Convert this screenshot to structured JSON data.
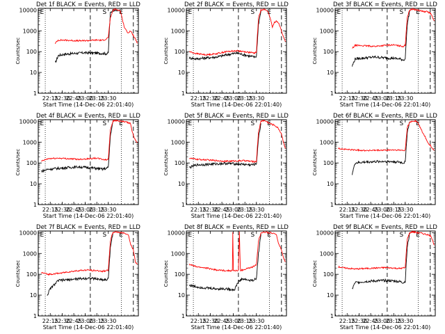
{
  "chart_data": [
    {
      "type": "line",
      "title": "Det 1f BLACK = Events, RED = LLD",
      "xlabel": "Start Time (14-Dec-06 22:01:40)",
      "ylabel": "Counts/sec",
      "x_tick_labels": [
        "22:15",
        "22:30",
        "22:45",
        "23:00",
        "23:15",
        "23:30"
      ],
      "y_tick_labels": [
        "1",
        "10",
        "100",
        "1000",
        "10000"
      ],
      "ylim": [
        1,
        12000
      ],
      "y_scale": "log",
      "markers": [
        "E",
        "S",
        "E"
      ],
      "series": [
        {
          "name": "Events",
          "color": "#000000",
          "x": [
            0.17,
            0.2,
            0.26,
            0.36,
            0.46,
            0.56,
            0.64,
            0.68,
            0.7,
            0.71,
            0.72,
            0.745,
            0.77,
            0.8
          ],
          "y": [
            28,
            65,
            75,
            82,
            88,
            86,
            82,
            80,
            85,
            1000,
            7000,
            10000,
            9500,
            9200
          ]
        },
        {
          "name": "LLD",
          "color": "#ff0000",
          "x": [
            0.17,
            0.2,
            0.3,
            0.4,
            0.5,
            0.58,
            0.64,
            0.68,
            0.7,
            0.72,
            0.745,
            0.77,
            0.8,
            0.82,
            0.86,
            0.88,
            0.9,
            0.92,
            0.95,
            0.97,
            0.99
          ],
          "y": [
            250,
            360,
            350,
            330,
            340,
            360,
            350,
            400,
            500,
            4000,
            9500,
            11000,
            10000,
            9000,
            1500,
            1000,
            800,
            1000,
            600,
            400,
            250
          ]
        }
      ]
    },
    {
      "type": "line",
      "title": "Det 2f BLACK = Events, RED = LLD",
      "xlabel": "Start Time (14-Dec-06 22:01:40)",
      "ylabel": "Counts/sec",
      "x_tick_labels": [
        "22:15",
        "22:30",
        "22:45",
        "23:00",
        "23:15",
        "23:30"
      ],
      "y_tick_labels": [
        "1",
        "10",
        "100",
        "1000",
        "10000"
      ],
      "ylim": [
        1,
        12000
      ],
      "y_scale": "log",
      "markers": [
        "E",
        "S",
        "E"
      ],
      "series": [
        {
          "name": "Events",
          "color": "#000000",
          "x": [
            0.03,
            0.1,
            0.2,
            0.3,
            0.4,
            0.5,
            0.58,
            0.64,
            0.68,
            0.7,
            0.72,
            0.745
          ],
          "y": [
            50,
            45,
            50,
            55,
            70,
            85,
            70,
            60,
            55,
            60,
            2000,
            9000
          ]
        },
        {
          "name": "LLD",
          "color": "#ff0000",
          "x": [
            0.03,
            0.1,
            0.2,
            0.3,
            0.4,
            0.5,
            0.58,
            0.64,
            0.68,
            0.7,
            0.72,
            0.745,
            0.77,
            0.8,
            0.82,
            0.86,
            0.88,
            0.9,
            0.92,
            0.95,
            0.97,
            0.99
          ],
          "y": [
            100,
            80,
            70,
            80,
            100,
            110,
            100,
            90,
            85,
            95,
            4000,
            10000,
            11000,
            9500,
            8000,
            1500,
            2500,
            3000,
            2500,
            1000,
            500,
            300
          ]
        }
      ]
    },
    {
      "type": "line",
      "title": "Det 3f BLACK = Events, RED = LLD",
      "xlabel": "Start Time (14-Dec-06 22:01:40)",
      "ylabel": "Counts/sec",
      "x_tick_labels": [
        "22:15",
        "22:30",
        "22:45",
        "23:00",
        "23:15",
        "23:30"
      ],
      "y_tick_labels": [
        "1",
        "10",
        "100",
        "1000",
        "10000"
      ],
      "ylim": [
        1,
        12000
      ],
      "y_scale": "log",
      "markers": [
        "E",
        "S",
        "E"
      ],
      "series": [
        {
          "name": "Events",
          "color": "#000000",
          "x": [
            0.17,
            0.2,
            0.3,
            0.4,
            0.5,
            0.58,
            0.64,
            0.68,
            0.7,
            0.72,
            0.745
          ],
          "y": [
            20,
            45,
            50,
            55,
            50,
            48,
            45,
            40,
            45,
            2000,
            9500
          ]
        },
        {
          "name": "LLD",
          "color": "#ff0000",
          "x": [
            0.17,
            0.2,
            0.3,
            0.4,
            0.5,
            0.58,
            0.64,
            0.68,
            0.7,
            0.72,
            0.745,
            0.77,
            0.8,
            0.82,
            0.86,
            0.88,
            0.9,
            0.92,
            0.95,
            0.97,
            0.99
          ],
          "y": [
            140,
            200,
            190,
            180,
            200,
            210,
            190,
            180,
            200,
            4500,
            10000,
            11000,
            10500,
            10000,
            9000,
            8500,
            8000,
            8500,
            7000,
            5000,
            3000
          ]
        }
      ]
    },
    {
      "type": "line",
      "title": "Det 4f BLACK = Events, RED = LLD",
      "xlabel": "Start Time (14-Dec-06 22:01:40)",
      "ylabel": "Counts/sec",
      "x_tick_labels": [
        "22:15",
        "22:30",
        "22:45",
        "23:00",
        "23:15",
        "23:30"
      ],
      "y_tick_labels": [
        "1",
        "10",
        "100",
        "1000",
        "10000"
      ],
      "ylim": [
        1,
        12000
      ],
      "y_scale": "log",
      "markers": [
        "E",
        "S",
        "E"
      ],
      "series": [
        {
          "name": "Events",
          "color": "#000000",
          "x": [
            0.03,
            0.1,
            0.2,
            0.3,
            0.4,
            0.5,
            0.58,
            0.64,
            0.68,
            0.7,
            0.72,
            0.745
          ],
          "y": [
            40,
            50,
            55,
            60,
            65,
            60,
            55,
            50,
            55,
            60,
            2000,
            9000
          ]
        },
        {
          "name": "LLD",
          "color": "#ff0000",
          "x": [
            0.03,
            0.1,
            0.2,
            0.3,
            0.4,
            0.5,
            0.58,
            0.64,
            0.68,
            0.7,
            0.72,
            0.745,
            0.77,
            0.8,
            0.82,
            0.86,
            0.88,
            0.9,
            0.92,
            0.95,
            0.97,
            0.99
          ],
          "y": [
            120,
            160,
            170,
            160,
            150,
            160,
            170,
            150,
            140,
            150,
            4000,
            10000,
            11000,
            10500,
            10000,
            9500,
            9000,
            8500,
            8000,
            2000,
            1200,
            1000
          ]
        }
      ]
    },
    {
      "type": "line",
      "title": "Det 5f BLACK = Events, RED = LLD",
      "xlabel": "Start Time (14-Dec-06 22:01:40)",
      "ylabel": "Counts/sec",
      "x_tick_labels": [
        "22:15",
        "22:30",
        "22:45",
        "23:00",
        "23:15",
        "23:30"
      ],
      "y_tick_labels": [
        "1",
        "10",
        "100",
        "1000",
        "10000"
      ],
      "ylim": [
        1,
        12000
      ],
      "y_scale": "log",
      "markers": [
        "E",
        "S",
        "E"
      ],
      "series": [
        {
          "name": "Events",
          "color": "#000000",
          "x": [
            0.03,
            0.1,
            0.2,
            0.3,
            0.4,
            0.5,
            0.58,
            0.64,
            0.68,
            0.7,
            0.72,
            0.745
          ],
          "y": [
            60,
            80,
            85,
            90,
            95,
            90,
            85,
            80,
            85,
            90,
            1500,
            8000
          ]
        },
        {
          "name": "LLD",
          "color": "#ff0000",
          "x": [
            0.03,
            0.1,
            0.2,
            0.3,
            0.4,
            0.5,
            0.58,
            0.64,
            0.68,
            0.7,
            0.72,
            0.745,
            0.77,
            0.8,
            0.82,
            0.86,
            0.88,
            0.9,
            0.92,
            0.95,
            0.97,
            0.99
          ],
          "y": [
            170,
            150,
            140,
            130,
            120,
            125,
            130,
            120,
            115,
            120,
            3000,
            10000,
            11000,
            10000,
            8500,
            7000,
            6500,
            5500,
            4500,
            2500,
            1000,
            500
          ]
        }
      ]
    },
    {
      "type": "line",
      "title": "Det 6f BLACK = Events, RED = LLD",
      "xlabel": "Start Time (14-Dec-06 22:01:40)",
      "ylabel": "Counts/sec",
      "x_tick_labels": [
        "22:15",
        "22:30",
        "22:45",
        "23:00",
        "23:15",
        "23:30"
      ],
      "y_tick_labels": [
        "1",
        "10",
        "100",
        "1000",
        "10000"
      ],
      "ylim": [
        1,
        12000
      ],
      "y_scale": "log",
      "markers": [
        "E",
        "S",
        "E"
      ],
      "series": [
        {
          "name": "Events",
          "color": "#000000",
          "x": [
            0.17,
            0.2,
            0.3,
            0.4,
            0.5,
            0.58,
            0.64,
            0.68,
            0.7,
            0.72,
            0.745
          ],
          "y": [
            30,
            100,
            110,
            115,
            120,
            115,
            110,
            100,
            110,
            3000,
            9500
          ]
        },
        {
          "name": "LLD",
          "color": "#ff0000",
          "x": [
            0.03,
            0.1,
            0.2,
            0.3,
            0.4,
            0.5,
            0.58,
            0.64,
            0.68,
            0.7,
            0.72,
            0.745,
            0.77,
            0.8,
            0.82,
            0.86,
            0.88,
            0.9,
            0.92,
            0.95,
            0.97,
            0.99
          ],
          "y": [
            500,
            450,
            420,
            400,
            400,
            410,
            420,
            410,
            400,
            420,
            5000,
            9000,
            10000,
            10500,
            9500,
            4000,
            2500,
            1800,
            1000,
            700,
            500,
            400
          ]
        }
      ]
    },
    {
      "type": "line",
      "title": "Det 7f BLACK = Events, RED = LLD",
      "xlabel": "Start Time (14-Dec-06 22:01:40)",
      "ylabel": "Counts/sec",
      "x_tick_labels": [
        "22:15",
        "22:30",
        "22:45",
        "23:00",
        "23:15",
        "23:30"
      ],
      "y_tick_labels": [
        "1",
        "10",
        "100",
        "1000",
        "10000"
      ],
      "ylim": [
        1,
        12000
      ],
      "y_scale": "log",
      "markers": [
        "E",
        "S",
        "E"
      ],
      "series": [
        {
          "name": "Events",
          "color": "#000000",
          "x": [
            0.09,
            0.12,
            0.2,
            0.3,
            0.4,
            0.5,
            0.58,
            0.64,
            0.68,
            0.7,
            0.72,
            0.745
          ],
          "y": [
            10,
            20,
            50,
            55,
            60,
            65,
            60,
            55,
            55,
            60,
            2000,
            9000
          ]
        },
        {
          "name": "LLD",
          "color": "#ff0000",
          "x": [
            0.03,
            0.1,
            0.2,
            0.3,
            0.4,
            0.5,
            0.58,
            0.64,
            0.68,
            0.7,
            0.72,
            0.745,
            0.77,
            0.8,
            0.82,
            0.86,
            0.88,
            0.9,
            0.92,
            0.95,
            0.97,
            0.99
          ],
          "y": [
            120,
            100,
            110,
            130,
            150,
            160,
            150,
            140,
            150,
            160,
            4000,
            10000,
            11000,
            10500,
            10000,
            9500,
            9000,
            8000,
            3000,
            1500,
            400,
            300
          ]
        }
      ]
    },
    {
      "type": "line",
      "title": "Det 8f BLACK = Events, RED = LLD",
      "xlabel": "Start Time (14-Dec-06 22:01:40)",
      "ylabel": "Counts/sec",
      "x_tick_labels": [
        "22:15",
        "22:30",
        "22:45",
        "23:00",
        "23:15",
        "23:30"
      ],
      "y_tick_labels": [
        "1",
        "10",
        "100",
        "1000",
        "10000"
      ],
      "ylim": [
        1,
        12000
      ],
      "y_scale": "log",
      "markers": [
        "E",
        "S",
        "E"
      ],
      "series": [
        {
          "name": "Events",
          "color": "#000000",
          "x": [
            0.03,
            0.1,
            0.2,
            0.3,
            0.4,
            0.48,
            0.52,
            0.56,
            0.6,
            0.64,
            0.68,
            0.7,
            0.72,
            0.745
          ],
          "y": [
            30,
            25,
            22,
            20,
            20,
            18,
            45,
            60,
            55,
            50,
            55,
            60,
            1000,
            8500
          ]
        },
        {
          "name": "LLD",
          "color": "#ff0000",
          "x": [
            0.03,
            0.1,
            0.2,
            0.3,
            0.4,
            0.46,
            0.464,
            0.47,
            0.52,
            0.53,
            0.54,
            0.58,
            0.62,
            0.64,
            0.68,
            0.7,
            0.72,
            0.745,
            0.77,
            0.8,
            0.82,
            0.86,
            0.88,
            0.9,
            0.92,
            0.95,
            0.97,
            0.99
          ],
          "y": [
            300,
            230,
            200,
            160,
            150,
            150,
            11000,
            150,
            150,
            11000,
            150,
            170,
            200,
            200,
            250,
            300,
            4000,
            9500,
            11000,
            10500,
            10000,
            9500,
            9000,
            8000,
            3000,
            1500,
            600,
            400
          ]
        }
      ]
    },
    {
      "type": "line",
      "title": "Det 9f BLACK = Events, RED = LLD",
      "xlabel": "Start Time (14-Dec-06 22:01:40)",
      "ylabel": "Counts/sec",
      "x_tick_labels": [
        "22:15",
        "22:30",
        "22:45",
        "23:00",
        "23:15",
        "23:30"
      ],
      "y_tick_labels": [
        "1",
        "10",
        "100",
        "1000",
        "10000"
      ],
      "ylim": [
        1,
        12000
      ],
      "y_scale": "log",
      "markers": [
        "E",
        "S",
        "E"
      ],
      "series": [
        {
          "name": "Events",
          "color": "#000000",
          "x": [
            0.17,
            0.2,
            0.3,
            0.4,
            0.5,
            0.58,
            0.64,
            0.68,
            0.7,
            0.72,
            0.745
          ],
          "y": [
            20,
            40,
            45,
            48,
            50,
            48,
            45,
            40,
            45,
            2000,
            9500
          ]
        },
        {
          "name": "LLD",
          "color": "#ff0000",
          "x": [
            0.03,
            0.1,
            0.2,
            0.3,
            0.4,
            0.5,
            0.58,
            0.64,
            0.68,
            0.7,
            0.72,
            0.745,
            0.77,
            0.8,
            0.82,
            0.86,
            0.88,
            0.9,
            0.92,
            0.95,
            0.97,
            0.99
          ],
          "y": [
            230,
            200,
            180,
            190,
            200,
            210,
            200,
            190,
            200,
            210,
            5000,
            10000,
            11000,
            10500,
            10000,
            9500,
            9000,
            8500,
            8000,
            7000,
            5000,
            2500
          ]
        }
      ]
    }
  ]
}
